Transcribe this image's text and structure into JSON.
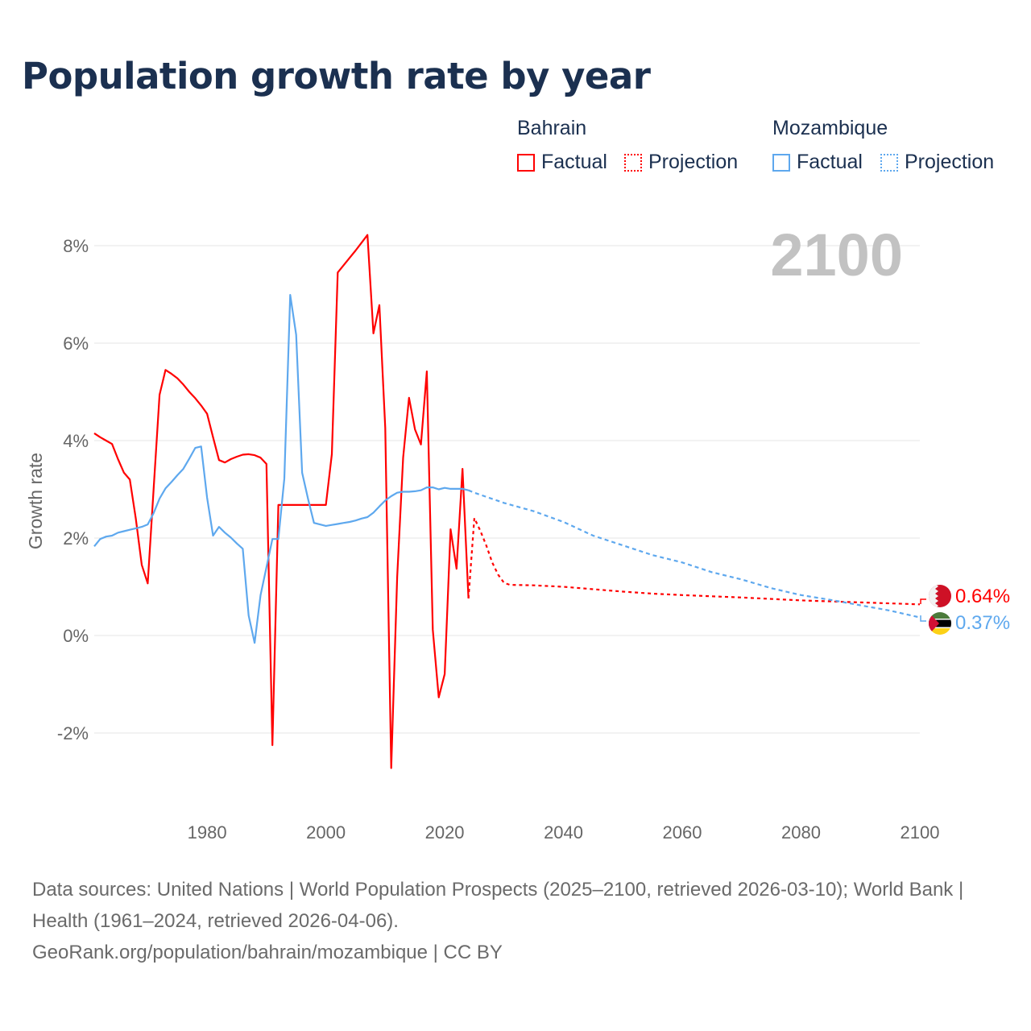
{
  "title": "Population growth rate by year",
  "legend": {
    "groups": [
      {
        "country": "Bahrain",
        "color": "#ff0000",
        "factual_label": "Factual",
        "projection_label": "Projection"
      },
      {
        "country": "Mozambique",
        "color": "#5ea8ee",
        "factual_label": "Factual",
        "projection_label": "Projection"
      }
    ]
  },
  "year_watermark": "2100",
  "end_labels": {
    "bahrain": "0.64%",
    "mozambique": "0.37%"
  },
  "footer": {
    "sources": "Data sources: United Nations | World Population Prospects (2025–2100, retrieved 2026-03-10); World Bank | Health (1961–2024, retrieved 2026-04-06).",
    "credit": "GeoRank.org/population/bahrain/mozambique | CC BY"
  },
  "chart_data": {
    "type": "line",
    "title": "Population growth rate by year",
    "xlabel": "",
    "ylabel": "Growth rate",
    "xlim": [
      1961,
      2100
    ],
    "ylim": [
      -3.4,
      8.9
    ],
    "x_ticks": [
      1980,
      2000,
      2020,
      2040,
      2060,
      2080,
      2100
    ],
    "y_ticks": [
      -2,
      0,
      2,
      4,
      6,
      8
    ],
    "y_tick_labels": [
      "-2%",
      "0%",
      "2%",
      "4%",
      "6%",
      "8%"
    ],
    "grid": true,
    "legend_position": "top-right",
    "series": [
      {
        "name": "Bahrain",
        "color": "#ff0000",
        "factual": {
          "start_year": 1961,
          "values": [
            4.15,
            4.07,
            4.0,
            3.93,
            3.62,
            3.34,
            3.2,
            2.4,
            1.45,
            1.07,
            3.0,
            4.94,
            5.45,
            5.37,
            5.28,
            5.15,
            5.0,
            4.87,
            4.72,
            4.55,
            4.07,
            3.6,
            3.55,
            3.62,
            3.67,
            3.71,
            3.72,
            3.7,
            3.65,
            3.52,
            -2.25,
            2.68,
            2.68,
            2.68,
            2.68,
            2.68,
            2.68,
            2.68,
            2.68,
            2.68,
            3.72,
            7.45,
            7.6,
            7.75,
            7.9,
            8.06,
            8.22,
            6.2,
            6.78,
            4.26,
            -2.72,
            1.2,
            3.65,
            4.88,
            4.23,
            3.92,
            5.42,
            0.12,
            -1.27,
            -0.79,
            2.18,
            1.37,
            3.42,
            0.76
          ]
        },
        "projection": {
          "years": [
            2024,
            2025,
            2026,
            2027,
            2028,
            2029,
            2030,
            2031,
            2035,
            2040,
            2045,
            2050,
            2055,
            2060,
            2070,
            2080,
            2090,
            2100
          ],
          "values": [
            0.76,
            2.41,
            2.15,
            1.85,
            1.5,
            1.25,
            1.08,
            1.04,
            1.03,
            1.0,
            0.95,
            0.9,
            0.86,
            0.83,
            0.78,
            0.72,
            0.68,
            0.64
          ]
        }
      },
      {
        "name": "Mozambique",
        "color": "#5ea8ee",
        "factual": {
          "start_year": 1961,
          "values": [
            1.83,
            1.98,
            2.03,
            2.05,
            2.11,
            2.14,
            2.17,
            2.2,
            2.23,
            2.28,
            2.51,
            2.81,
            3.02,
            3.15,
            3.29,
            3.42,
            3.63,
            3.85,
            3.88,
            2.83,
            2.05,
            2.23,
            2.11,
            2.01,
            1.89,
            1.78,
            0.41,
            -0.15,
            0.83,
            1.4,
            1.98,
            1.98,
            3.22,
            6.99,
            6.17,
            3.34,
            2.8,
            2.31,
            2.28,
            2.25,
            2.27,
            2.29,
            2.31,
            2.33,
            2.36,
            2.4,
            2.43,
            2.52,
            2.65,
            2.77,
            2.86,
            2.93,
            2.95,
            2.95,
            2.96,
            2.98,
            3.04,
            3.04,
            3.0,
            3.03,
            3.01,
            3.01,
            3.01,
            2.98
          ]
        },
        "projection": {
          "years": [
            2024,
            2025,
            2030,
            2035,
            2040,
            2045,
            2050,
            2055,
            2060,
            2065,
            2070,
            2075,
            2080,
            2085,
            2090,
            2095,
            2100
          ],
          "values": [
            2.98,
            2.93,
            2.72,
            2.55,
            2.33,
            2.05,
            1.85,
            1.65,
            1.5,
            1.3,
            1.15,
            0.97,
            0.83,
            0.73,
            0.62,
            0.51,
            0.37
          ]
        }
      }
    ]
  }
}
